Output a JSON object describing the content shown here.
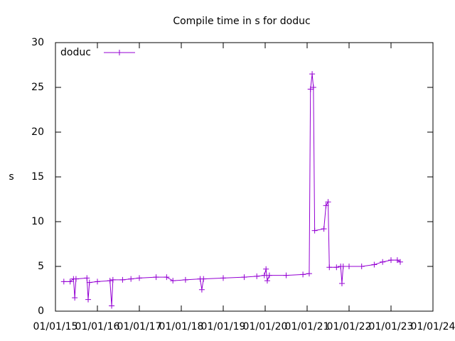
{
  "chart_data": {
    "type": "line",
    "title": "Compile time in s for doduc",
    "y_label": "s",
    "legend": "top-left",
    "xlim": [
      2015,
      2024
    ],
    "ylim": [
      0,
      30
    ],
    "yticks": [
      0,
      5,
      10,
      15,
      20,
      25,
      30
    ],
    "xticks": [
      {
        "value": 2015,
        "label": "01/01/15"
      },
      {
        "value": 2016,
        "label": "01/01/16"
      },
      {
        "value": 2017,
        "label": "01/01/17"
      },
      {
        "value": 2018,
        "label": "01/01/18"
      },
      {
        "value": 2019,
        "label": "01/01/19"
      },
      {
        "value": 2020,
        "label": "01/01/20"
      },
      {
        "value": 2021,
        "label": "01/01/21"
      },
      {
        "value": 2022,
        "label": "01/01/22"
      },
      {
        "value": 2023,
        "label": "01/01/23"
      },
      {
        "value": 2024,
        "label": "01/01/24"
      }
    ],
    "series": [
      {
        "name": "doduc",
        "color": "#9400d3",
        "x": [
          2015.2,
          2015.35,
          2015.43,
          2015.46,
          2015.49,
          2015.75,
          2015.78,
          2015.81,
          2016.0,
          2016.3,
          2016.34,
          2016.37,
          2016.6,
          2016.8,
          2017.0,
          2017.4,
          2017.65,
          2017.8,
          2018.1,
          2018.45,
          2018.49,
          2018.53,
          2019.0,
          2019.5,
          2019.8,
          2019.98,
          2020.02,
          2020.05,
          2020.1,
          2020.5,
          2020.9,
          2021.05,
          2021.08,
          2021.12,
          2021.15,
          2021.18,
          2021.4,
          2021.45,
          2021.5,
          2021.53,
          2021.7,
          2021.8,
          2021.83,
          2021.86,
          2022.0,
          2022.3,
          2022.6,
          2022.8,
          2023.0,
          2023.15,
          2023.22
        ],
        "values": [
          3.3,
          3.3,
          3.6,
          1.5,
          3.6,
          3.7,
          1.3,
          3.2,
          3.3,
          3.4,
          0.6,
          3.5,
          3.5,
          3.6,
          3.7,
          3.8,
          3.8,
          3.4,
          3.5,
          3.6,
          2.4,
          3.6,
          3.7,
          3.8,
          3.9,
          4.0,
          4.7,
          3.4,
          4.0,
          4.0,
          4.1,
          4.2,
          24.8,
          26.5,
          25.0,
          9.0,
          9.2,
          11.8,
          12.2,
          4.9,
          4.9,
          5.0,
          3.1,
          5.0,
          5.0,
          5.0,
          5.2,
          5.5,
          5.7,
          5.7,
          5.5
        ]
      }
    ]
  }
}
